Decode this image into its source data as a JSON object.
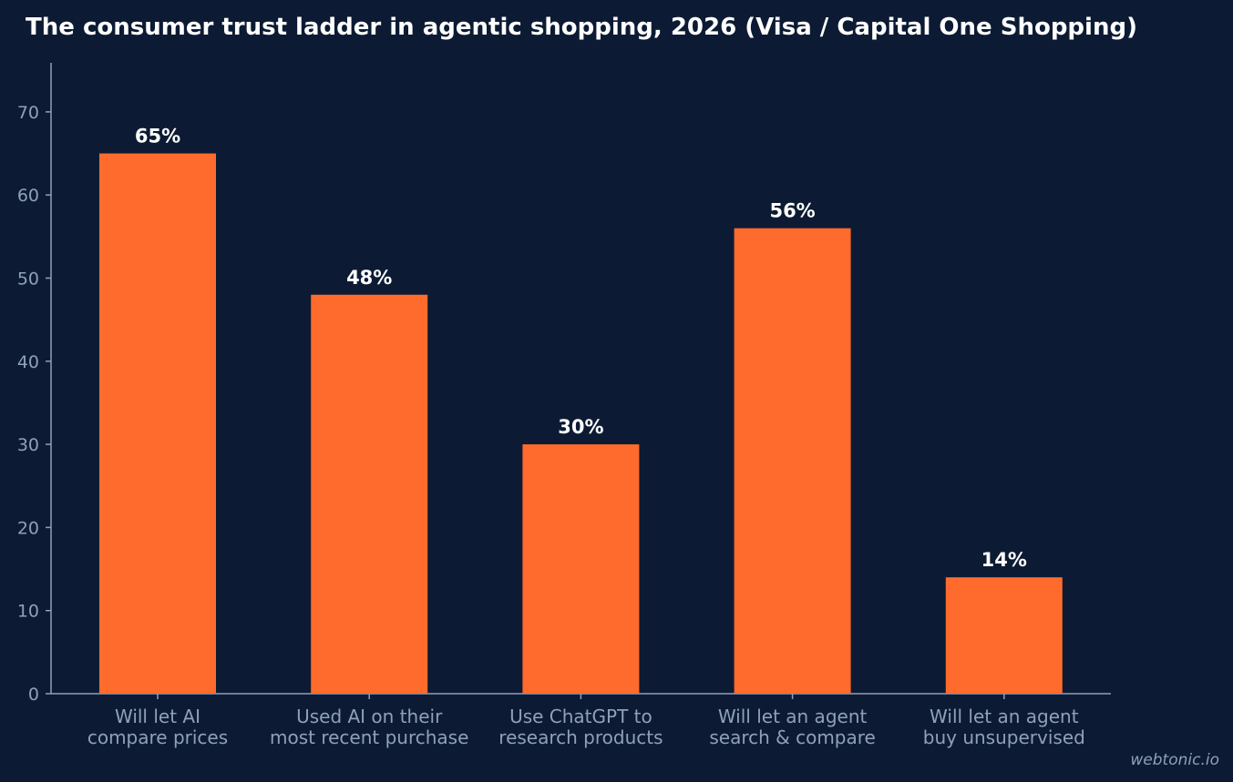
{
  "chart_data": {
    "type": "bar",
    "title": "The consumer trust ladder in agentic shopping, 2026 (Visa / Capital One Shopping)",
    "categories": [
      [
        "Will let AI",
        "compare prices"
      ],
      [
        "Used AI on their",
        "most recent purchase"
      ],
      [
        "Use ChatGPT to",
        "research products"
      ],
      [
        "Will let an agent",
        "search & compare"
      ],
      [
        "Will let an agent",
        "buy unsupervised"
      ]
    ],
    "values": [
      65,
      48,
      30,
      56,
      14
    ],
    "data_labels": [
      "65%",
      "48%",
      "30%",
      "56%",
      "14%"
    ],
    "yticks": [
      "0",
      "10",
      "20",
      "30",
      "40",
      "50",
      "60",
      "70"
    ],
    "ylim": [
      0,
      76
    ],
    "xlabel": "",
    "ylabel": "",
    "grid": false,
    "legend": "none",
    "bar_color": "#ff6b2c",
    "background_color": "#0c1b33"
  },
  "watermark": "webtonic.io"
}
